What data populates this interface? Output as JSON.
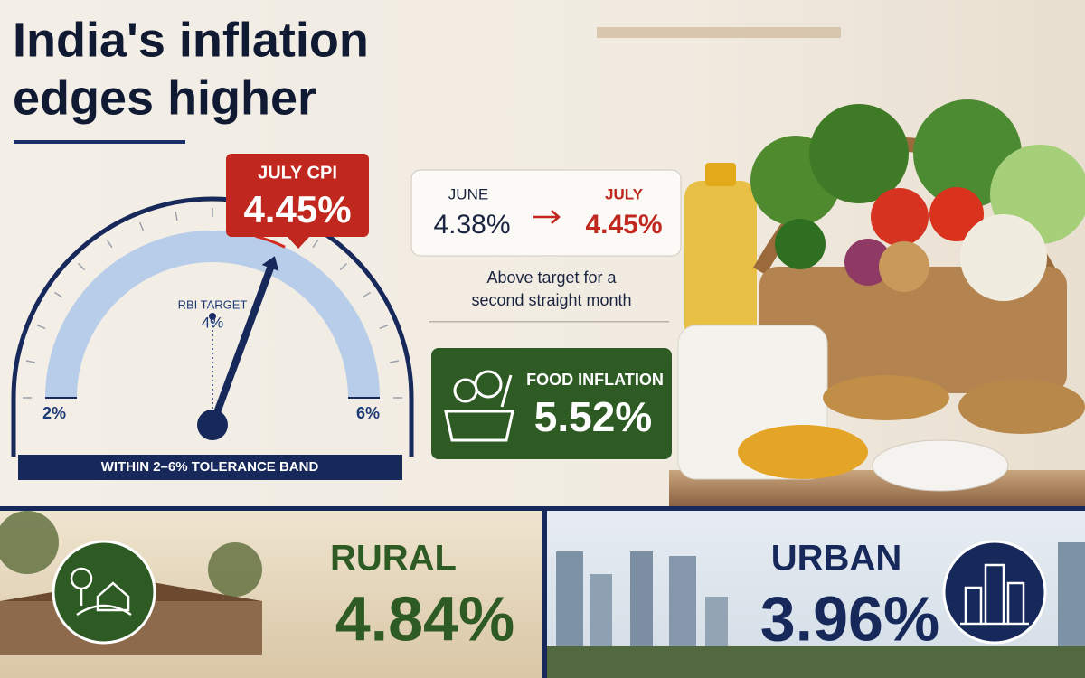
{
  "header": {
    "title_line1": "India's inflation",
    "title_line2": "edges higher"
  },
  "gauge": {
    "badge_title": "JULY CPI",
    "value": 4.45,
    "value_label": "4.45%",
    "min": 2,
    "min_label": "2%",
    "max": 6,
    "max_label": "6%",
    "target_title": "RBI TARGET",
    "target": 4,
    "target_label": "4%",
    "band_text": "WITHIN  2–6% TOLERANCE BAND"
  },
  "comparison": {
    "from_month": "JUNE",
    "from_value": "4.38%",
    "to_month": "JULY",
    "to_value": "4.45%",
    "note_line1": "Above target for a",
    "note_line2": "second straight month"
  },
  "food": {
    "title": "FOOD INFLATION",
    "value": "5.52%"
  },
  "rural": {
    "title": "RURAL",
    "value": "4.84%"
  },
  "urban": {
    "title": "URBAN",
    "value": "3.96%"
  }
}
